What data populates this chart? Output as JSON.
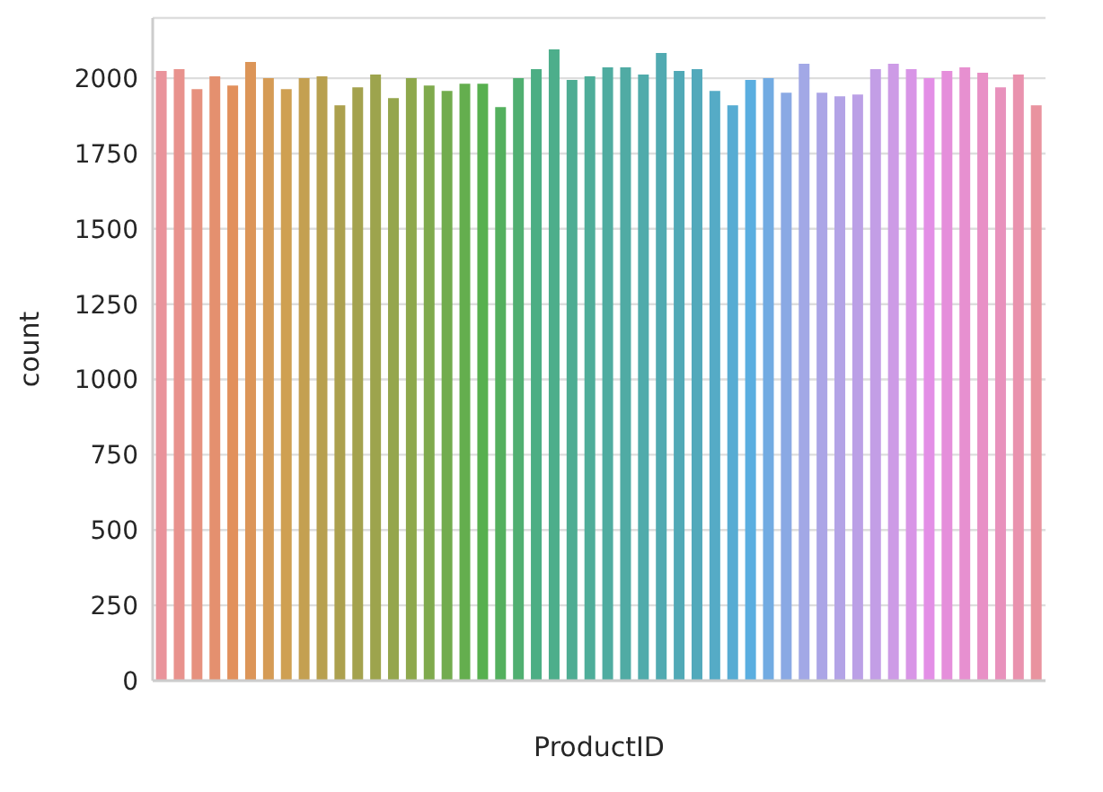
{
  "chart_data": {
    "type": "bar",
    "xlabel": "ProductID",
    "ylabel": "count",
    "categories": [
      null,
      null,
      null,
      null,
      null,
      null,
      null,
      null,
      null,
      null,
      null,
      null,
      null,
      null,
      null,
      null,
      null,
      null,
      null,
      null,
      null,
      null,
      null,
      null,
      null,
      null,
      null,
      null,
      null,
      null,
      null,
      null,
      null,
      null,
      null,
      null,
      null,
      null,
      null,
      null,
      null,
      null,
      null,
      null,
      null,
      null,
      null,
      null,
      null,
      null
    ],
    "values": [
      2024,
      2030,
      1964,
      2006,
      1976,
      2054,
      2000,
      1964,
      2000,
      2006,
      1910,
      1970,
      2012,
      1934,
      2000,
      1976,
      1958,
      1982,
      1982,
      1904,
      2000,
      2030,
      2096,
      1994,
      2006,
      2036,
      2036,
      2012,
      2084,
      2024,
      2030,
      1958,
      1910,
      1994,
      2000,
      1952,
      2048,
      1952,
      1940,
      1946,
      2030,
      2048,
      2030,
      2000,
      2024,
      2036,
      2018,
      1970,
      2012,
      1910
    ],
    "colors": [
      "#e9939b",
      "#e8928d",
      "#e6917e",
      "#e4906f",
      "#e2905c",
      "#dc9558",
      "#d59b55",
      "#cfa052",
      "#c4a051",
      "#b8a04f",
      "#aca04e",
      "#a4a24e",
      "#9da44d",
      "#95a64d",
      "#8ea84c",
      "#7faa4d",
      "#72ac4e",
      "#64ae4e",
      "#57b04f",
      "#54b05e",
      "#50af71",
      "#4cae84",
      "#4dae8b",
      "#4ead93",
      "#4ead99",
      "#4faca0",
      "#50aba4",
      "#50abab",
      "#51aab1",
      "#51a9b6",
      "#52a9bb",
      "#55abc6",
      "#57acd3",
      "#5aaee0",
      "#72abe2",
      "#8aa9e4",
      "#a2a8e6",
      "#aba5e6",
      "#b3a3e6",
      "#bba0e6",
      "#c39ee6",
      "#cd9be6",
      "#d895e6",
      "#e38fe6",
      "#e58fdb",
      "#e790d0",
      "#e890c6",
      "#e891bc",
      "#e992ae",
      "#e9939f"
    ],
    "ylim": [
      0,
      2200
    ],
    "yticks": [
      0,
      250,
      500,
      750,
      1000,
      1250,
      1500,
      1750,
      2000
    ],
    "grid": "y"
  }
}
